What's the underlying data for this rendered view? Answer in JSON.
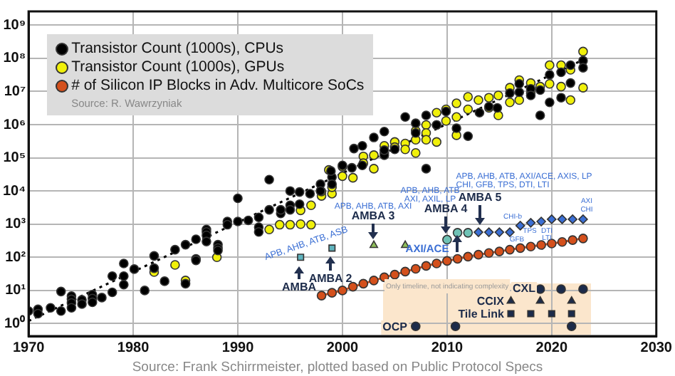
{
  "chart_data": {
    "type": "scatter",
    "xlim": [
      1970,
      2030
    ],
    "xticks": [
      1970,
      1980,
      1990,
      2000,
      2010,
      2020,
      2030
    ],
    "ylim": [
      0.42,
      2600000000
    ],
    "yticks": [
      {
        "value": 1,
        "label": "10⁰"
      },
      {
        "value": 10,
        "label": "10¹"
      },
      {
        "value": 100,
        "label": "10²"
      },
      {
        "value": 1000,
        "label": "10³"
      },
      {
        "value": 10000,
        "label": "10⁴"
      },
      {
        "value": 100000,
        "label": "10⁵"
      },
      {
        "value": 1000000,
        "label": "10⁶"
      },
      {
        "value": 10000000,
        "label": "10⁷"
      },
      {
        "value": 100000000,
        "label": "10⁸"
      },
      {
        "value": 1000000000,
        "label": "10⁹"
      }
    ],
    "log": "y",
    "grid": true,
    "legend": "top left",
    "marker": "circle",
    "series": [
      {
        "name": "Transistor Count (1000s), CPUs",
        "color": "#000000",
        "x": [
          1970,
          1970.9,
          1970.9,
          1972.1,
          1973.1,
          1973.1,
          1974.1,
          1974.1,
          1974.1,
          1974.1,
          1975.1,
          1975.1,
          1976.1,
          1976.1,
          1976.1,
          1977,
          1978,
          1978,
          1979.1,
          1979.1,
          1979.1,
          1980.1,
          1981.1,
          1982,
          1982,
          1983,
          1984,
          1985,
          1985,
          1986,
          1986,
          1986,
          1987,
          1987,
          1987,
          1987,
          1988.1,
          1988.1,
          1988.1,
          1989,
          1989,
          1990,
          1990,
          1991,
          1992,
          1992,
          1992,
          1993,
          1993,
          1994.1,
          1994.1,
          1995,
          1995,
          1995,
          1995.9,
          1995.9,
          1996.9,
          1997.9,
          1997.9,
          1999,
          1999,
          1998.9,
          2000,
          2000.9,
          2001.1,
          2001.9,
          2001.9,
          2003,
          2004,
          2004,
          2004,
          2005,
          2006,
          2007,
          2007,
          2008,
          2008,
          2009,
          2009.9,
          2010.9,
          2012,
          2013.1,
          2014,
          2014.8,
          2016,
          2016.9,
          2016.9,
          2018,
          2018,
          2018.9,
          2018.9,
          2019.8,
          2019.8,
          2020.9,
          2020.9,
          2021.8,
          2021.8,
          2023,
          2023
        ],
        "values": [
          2.4,
          2.7,
          2,
          3,
          9.3,
          2.4,
          6.8,
          5.4,
          4.2,
          3,
          5.2,
          3.9,
          7.5,
          5.7,
          4.4,
          6.1,
          27,
          8.8,
          65,
          27,
          15,
          44,
          10,
          110,
          47,
          19,
          170,
          240,
          16,
          350,
          90,
          81,
          690,
          580,
          460,
          300,
          240,
          190,
          160,
          1200,
          960,
          6000,
          1200,
          1300,
          1600,
          810,
          580,
          22000,
          2700,
          2100,
          2700,
          10000,
          3700,
          2700,
          9300,
          4000,
          8300,
          16000,
          10000,
          26000,
          16000,
          40000,
          59000,
          50000,
          190000,
          230000,
          59000,
          410000,
          620000,
          120000,
          170000,
          180000,
          1700000,
          1100000,
          560000,
          1900000,
          47000,
          980000,
          2500000,
          780000,
          450000,
          2300000,
          3500000,
          3200000,
          8900000,
          9500000,
          17000000,
          12000000,
          7600000,
          11000000,
          1900000,
          32000000,
          4700000,
          38000000,
          6500000,
          62000000,
          18000000,
          85000000,
          52000000
        ]
      },
      {
        "name": "Transistor Count (1000s), GPUs",
        "color": "#f0f00a",
        "x": [
          1982,
          1984,
          1985,
          1988,
          1993,
          1994,
          1995,
          1996,
          1996,
          1997,
          1997,
          1998,
          1998,
          1999,
          1999,
          1998.7,
          2000,
          2000,
          2001,
          2002,
          2002,
          2003,
          2003,
          2004,
          2004,
          2005,
          2005,
          2006,
          2006,
          2007,
          2007,
          2007,
          2008,
          2008,
          2008,
          2009,
          2009,
          2009,
          2009.9,
          2009.9,
          2010.9,
          2010.9,
          2010.9,
          2012,
          2012,
          2013,
          2014,
          2014,
          2014.9,
          2014.9,
          2016,
          2016,
          2016.9,
          2016.9,
          2018,
          2018,
          2018.9,
          2019.8,
          2019.8,
          2020.9,
          2020.9,
          2021.8,
          2021.8,
          2023,
          2023
        ],
        "values": [
          36,
          59,
          20,
          100,
          690,
          960,
          960,
          1000,
          2600,
          960,
          3700,
          7100,
          9600,
          8300,
          13000,
          43000,
          54000,
          28000,
          25000,
          110000,
          69000,
          120000,
          47000,
          140000,
          230000,
          300000,
          210000,
          270000,
          180000,
          660000,
          350000,
          140000,
          980000,
          560000,
          350000,
          2300000,
          980000,
          300000,
          2900000,
          1300000,
          4400000,
          1700000,
          480000,
          6900000,
          2900000,
          5500000,
          6500000,
          3200000,
          7600000,
          1900000,
          13000000,
          4700000,
          22000000,
          5500000,
          18000000,
          8900000,
          14000000,
          62000000,
          17000000,
          62000000,
          14000000,
          45000000,
          5500000,
          160000000,
          13000000
        ]
      },
      {
        "name": "# of Silicon IP Blocks in Adv. Multicore SoCs",
        "color": "#d4501c",
        "type": "line",
        "line_style": "solid",
        "x": [
          1998,
          1999,
          2000,
          2001,
          2002,
          2003,
          2004,
          2005,
          2006,
          2007,
          2008,
          2009,
          2010,
          2011,
          2012,
          2013,
          2014,
          2015,
          2016,
          2017,
          2018,
          2019,
          2020,
          2021,
          2022,
          2023
        ],
        "values": [
          7,
          8.5,
          10,
          13,
          16,
          20,
          25,
          30,
          37,
          45,
          55,
          65,
          78,
          90,
          105,
          120,
          135,
          150,
          170,
          190,
          210,
          235,
          260,
          290,
          330,
          370
        ]
      },
      {
        "color": "#000000",
        "type": "line",
        "marker": "none",
        "line_style": "dotted",
        "x": [
          1970,
          2023
        ],
        "values": [
          1.2,
          90000000
        ]
      },
      {
        "color": "#5fb3bd",
        "marker": "square",
        "x": [
          1996,
          1999
        ],
        "values": [
          100,
          190
        ]
      },
      {
        "color": "#8fbf5a",
        "marker": "triangle",
        "x": [
          2003,
          2006
        ],
        "values": [
          230,
          230
        ]
      },
      {
        "color": "#6fc2b5",
        "marker": "circle",
        "x": [
          2010,
          2011,
          2012
        ],
        "values": [
          340,
          550,
          550
        ]
      },
      {
        "color": "#3b6fd4",
        "marker": "diamond",
        "x": [
          2013,
          2014,
          2015,
          2016,
          2017,
          2018,
          2019,
          2020,
          2021,
          2022,
          2023
        ],
        "values": [
          570,
          570,
          570,
          570,
          900,
          1100,
          1200,
          1400,
          1400,
          1400,
          1400
        ]
      },
      {
        "color": "#1c2b4a",
        "marker": "circle",
        "x": [
          2018.9,
          2020.9,
          2023
        ],
        "values": [
          11,
          11,
          11
        ]
      },
      {
        "color": "#1c2b4a",
        "marker": "triangle",
        "x": [
          2016.1,
          2018.9,
          2021.9
        ],
        "values": [
          4.8,
          4.8,
          4.8
        ]
      },
      {
        "color": "#1c2b4a",
        "marker": "square",
        "x": [
          2016.1,
          2018,
          2020,
          2021.9
        ],
        "values": [
          2,
          2,
          2,
          2
        ]
      },
      {
        "color": "#1c2b4a",
        "marker": "circle",
        "x": [
          2007,
          2010.8,
          2021.9
        ],
        "values": [
          0.83,
          0.83,
          0.83
        ]
      }
    ],
    "annotations": [
      "AMBA",
      "AMBA 2",
      "AMBA 3",
      "AMBA 4",
      "AMBA 5",
      "AXI/ACE",
      "APB, AHB, ATB, ASB",
      "APB, AHB, ATB, AXI",
      "APB, AHB, ATB",
      "AXI, AXIL, LP",
      "APB, AHB, ATB, AXI/ACE, AXIS, LP",
      "CHI, GFB, TPS, DTI, LTI",
      "CHI-b",
      "GFB",
      "TPS",
      "DTI",
      "LTI",
      "AXI",
      "CHI",
      "CXL",
      "CCIX",
      "Tile Link",
      "OCP",
      "Source: R. Wawrzyniak",
      "Only timeline, not indicating complexity",
      "Source: Frank Schirrmeister, plotted based on Public Protocol Specs"
    ]
  }
}
